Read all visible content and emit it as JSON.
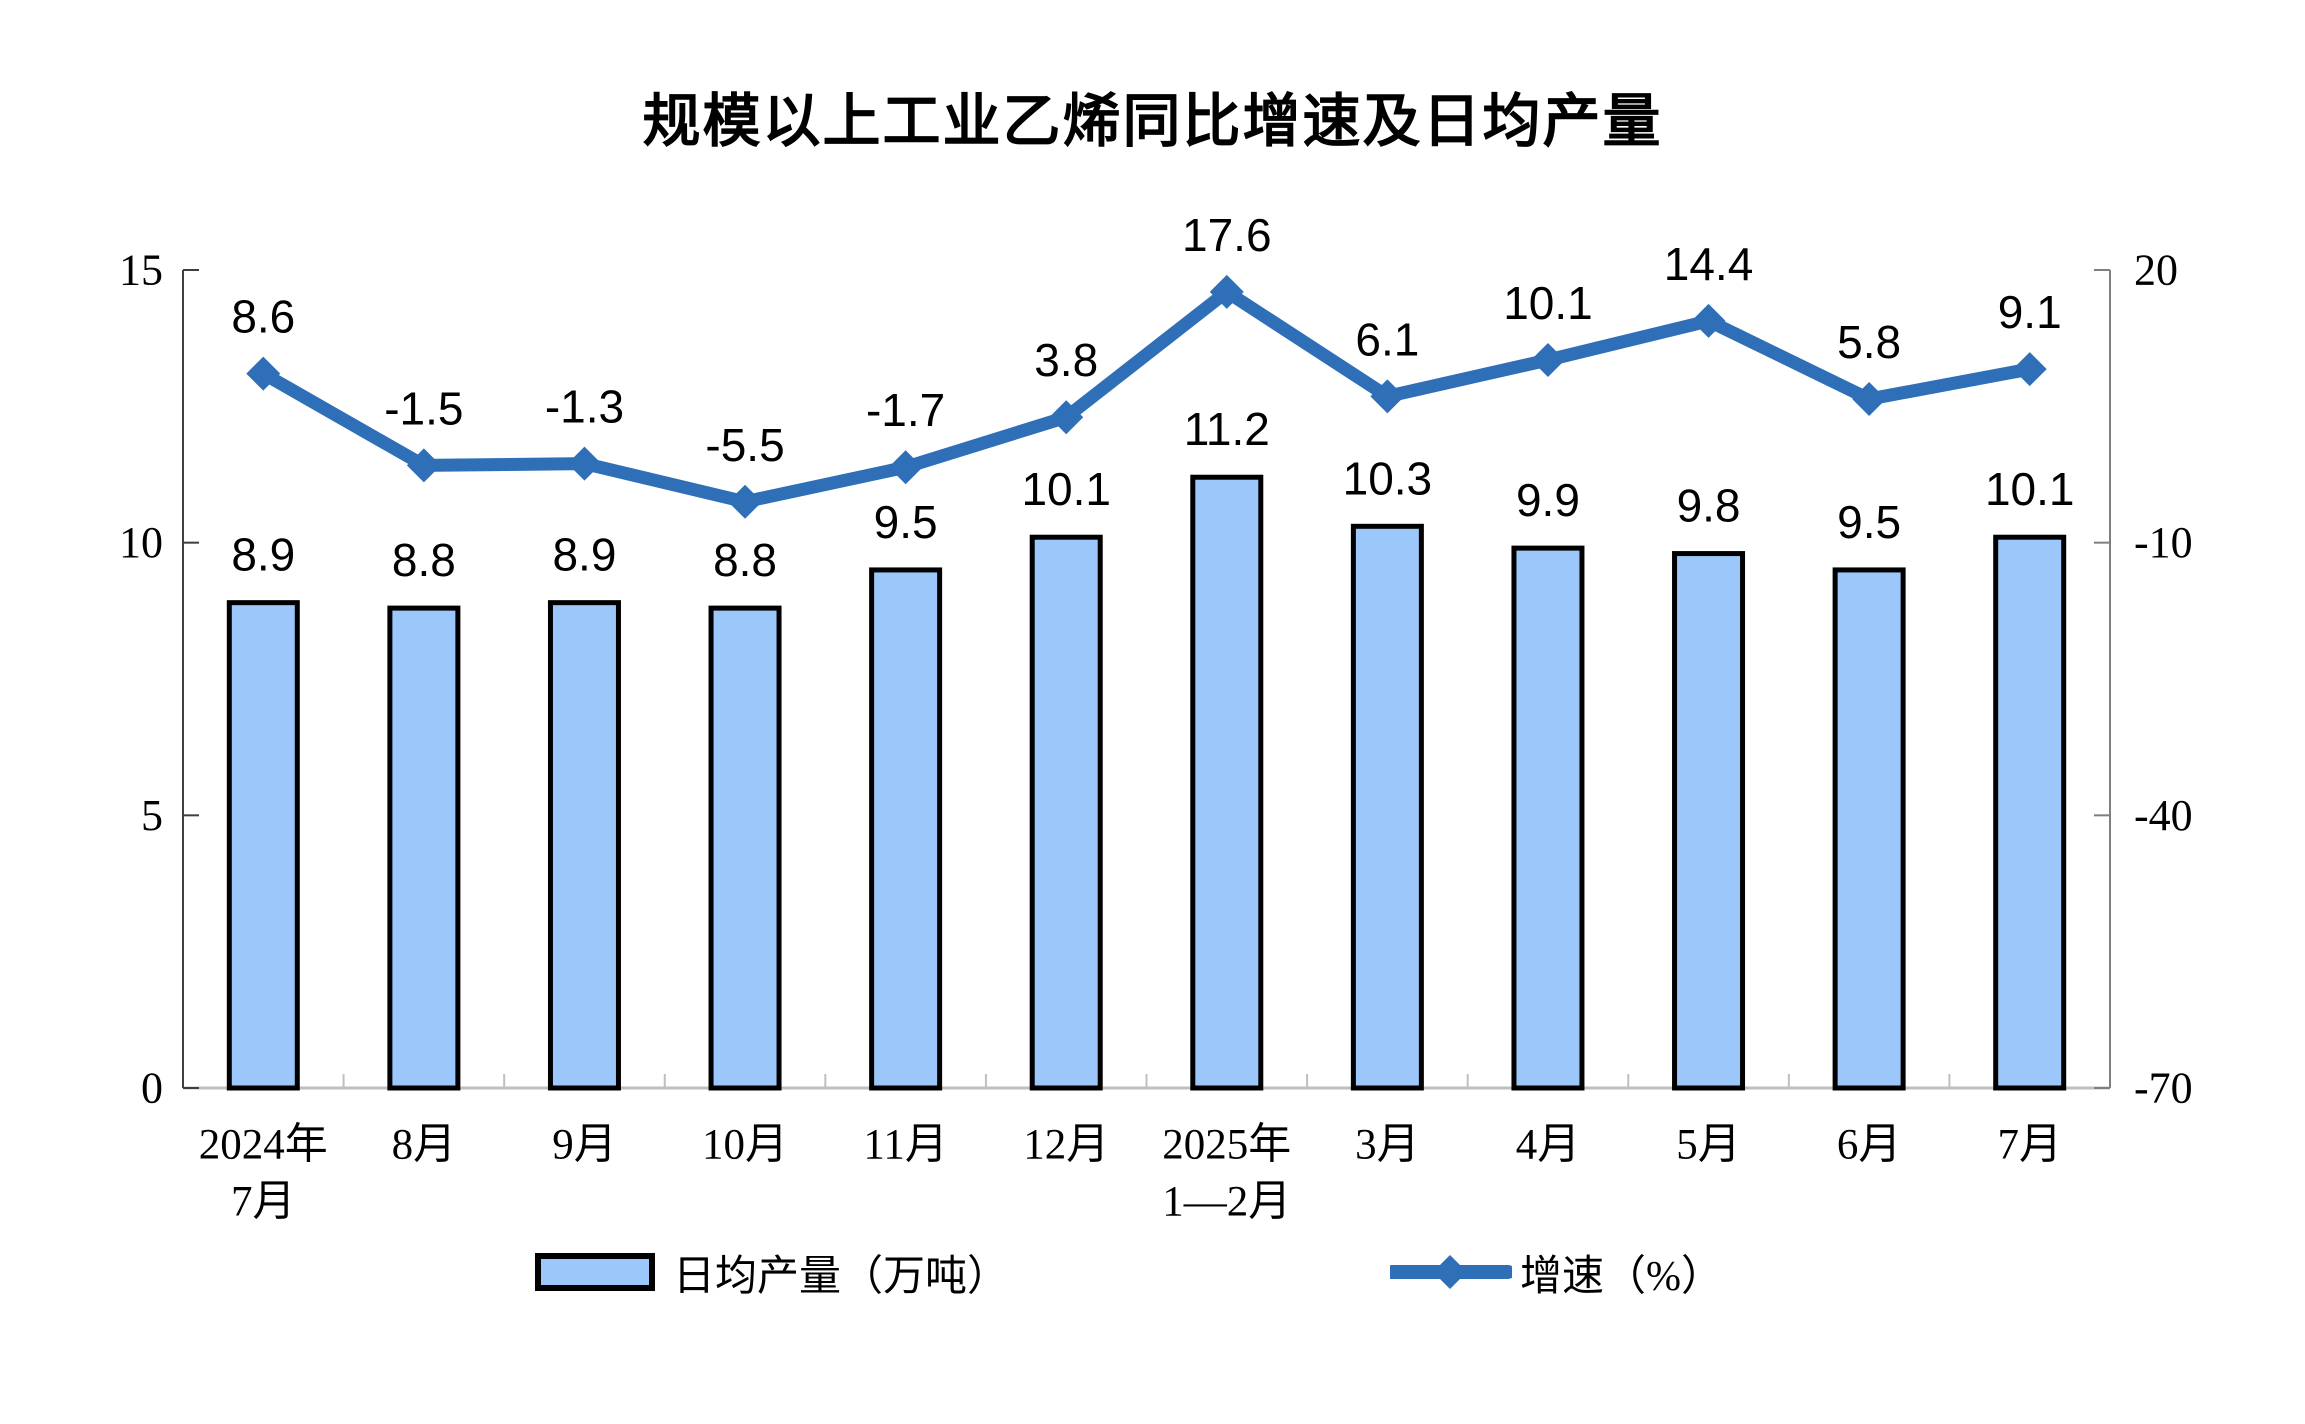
{
  "title": "规模以上工业乙烯同比增速及日均产量",
  "legend": {
    "bar_label": "日均产量（万吨）",
    "line_label": "增速（%）"
  },
  "colors": {
    "bar_fill": "#9BC7FA",
    "bar_border": "#000000",
    "line": "#2E6FB7",
    "bottom_axis": "#BFBFBF",
    "left_axis": "#3F3F3F",
    "right_axis": "#7F7F7F",
    "text": "#000000"
  },
  "chart_data": {
    "type": "bar+line combo",
    "title": "规模以上工业乙烯同比增速及日均产量",
    "categories": [
      "2024年\n7月",
      "8月",
      "9月",
      "10月",
      "11月",
      "12月",
      "2025年\n1—2月",
      "3月",
      "4月",
      "5月",
      "6月",
      "7月"
    ],
    "series": [
      {
        "name": "日均产量（万吨）",
        "type": "bar",
        "axis": "left",
        "values": [
          8.9,
          8.8,
          8.9,
          8.8,
          9.5,
          10.1,
          11.2,
          10.3,
          9.9,
          9.8,
          9.5,
          10.1
        ]
      },
      {
        "name": "增速（%）",
        "type": "line",
        "axis": "right",
        "values": [
          8.6,
          -1.5,
          -1.3,
          -5.5,
          -1.7,
          3.8,
          17.6,
          6.1,
          10.1,
          14.4,
          5.8,
          9.1
        ]
      }
    ],
    "left_axis": {
      "min": 0,
      "max": 15,
      "ticks": [
        15,
        10,
        5,
        0
      ]
    },
    "right_axis": {
      "min": -70,
      "max": 20,
      "ticks": [
        20,
        -10,
        -40,
        -70
      ]
    },
    "grid": false,
    "legend_position": "bottom"
  }
}
